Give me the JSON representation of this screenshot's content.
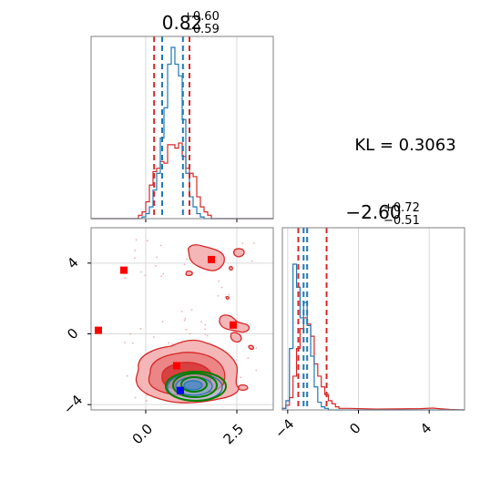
{
  "chart_data": [
    {
      "panel": "marginal-param-1",
      "type": "histogram",
      "title": {
        "median": "0.82",
        "plus": "+0.60",
        "minus": "−0.59"
      },
      "xlim": [
        -1.5,
        3.5
      ],
      "grid": true,
      "bins": [
        -0.2,
        -0.1,
        0.0,
        0.1,
        0.2,
        0.3,
        0.4,
        0.5,
        0.6,
        0.7,
        0.8,
        0.9,
        1.0,
        1.1,
        1.2,
        1.3,
        1.4,
        1.5,
        1.6,
        1.7,
        1.8
      ],
      "series": [
        {
          "color": "#d62728",
          "counts": [
            2,
            4,
            10,
            20,
            28,
            30,
            34,
            33,
            44,
            44,
            42,
            45,
            37,
            30,
            27,
            25,
            13,
            7,
            4,
            2
          ]
        },
        {
          "color": "#1f77b4",
          "counts": [
            0,
            1,
            3,
            7,
            17,
            27,
            48,
            66,
            92,
            102,
            92,
            85,
            59,
            27,
            13,
            7,
            3,
            1,
            0,
            0
          ]
        }
      ],
      "quantile_lines": {
        "red": [
          0.23,
          1.2
        ],
        "blue": [
          0.45,
          1.02
        ]
      }
    },
    {
      "panel": "marginal-param-2",
      "type": "histogram",
      "title": {
        "median": "−2.60",
        "plus": "+0.72",
        "minus": "−0.51"
      },
      "xlim": [
        -4.3,
        6.0
      ],
      "xticks": [
        "−4",
        "0",
        "4"
      ],
      "grid": true,
      "bins": [
        -4.3,
        -4.1,
        -3.9,
        -3.7,
        -3.5,
        -3.3,
        -3.1,
        -2.9,
        -2.7,
        -2.5,
        -2.3,
        -2.1,
        -1.9,
        -1.7,
        -1.5,
        -1.3,
        -1.1,
        -0.9,
        -0.7
      ],
      "series": [
        {
          "color": "#d62728",
          "counts": [
            1,
            3,
            8,
            22,
            40,
            53,
            60,
            56,
            48,
            30,
            22,
            15,
            10,
            6,
            4,
            2,
            1,
            1
          ]
        },
        {
          "color": "#1f77b4",
          "counts": [
            1,
            6,
            40,
            95,
            80,
            60,
            70,
            55,
            35,
            15,
            5,
            2,
            1,
            0,
            0,
            0,
            0,
            0
          ]
        }
      ],
      "quantile_lines": {
        "red": [
          -3.4,
          -1.8
        ],
        "blue": [
          -3.1,
          -2.9
        ]
      }
    },
    {
      "panel": "joint-param-1-param-2",
      "type": "scatter",
      "xlim": [
        -1.5,
        3.5
      ],
      "ylim": [
        -4.3,
        6.0
      ],
      "xticks": [
        "0.0",
        "2.5"
      ],
      "yticks": [
        "−4",
        "0",
        "4"
      ],
      "grid": true,
      "red_markers": [
        {
          "x": -1.3,
          "y": 0.2
        },
        {
          "x": -0.6,
          "y": 3.6
        },
        {
          "x": 1.8,
          "y": 4.2
        },
        {
          "x": 2.4,
          "y": 0.5
        },
        {
          "x": 0.85,
          "y": -1.8
        }
      ],
      "blue_markers": [
        {
          "x": 0.95,
          "y": -3.2
        }
      ],
      "contour_groups": [
        {
          "color": "#d62728",
          "label": "red-contours"
        },
        {
          "color": "#1f77b4",
          "label": "blue-contours"
        },
        {
          "color": "#008000",
          "label": "green-contours"
        }
      ]
    }
  ],
  "annotation": {
    "kl_text": "KL = 0.3063"
  }
}
